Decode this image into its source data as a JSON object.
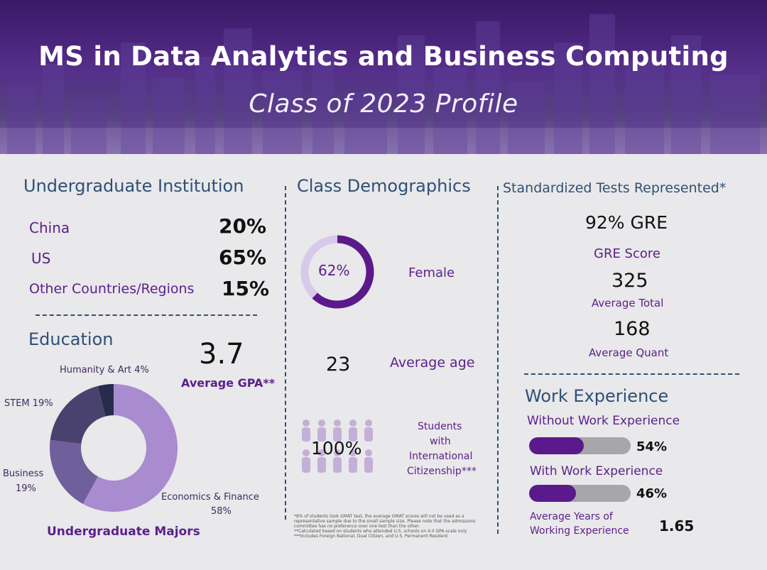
{
  "header": {
    "title": "MS in Data Analytics and Business Computing",
    "subtitle": "Class of 2023 Profile"
  },
  "institution": {
    "heading": "Undergraduate Institution",
    "rows": [
      {
        "label": "China",
        "value": "20%"
      },
      {
        "label": "US",
        "value": "65%"
      },
      {
        "label": "Other Countries/Regions",
        "value": "15%"
      }
    ]
  },
  "education": {
    "heading": "Education",
    "gpa_value": "3.7",
    "gpa_label": "Average GPA**",
    "majors_title": "Undergraduate Majors",
    "labels": {
      "humanity": "Humanity & Art 4%",
      "stem": "STEM 19%",
      "business_name": "Business",
      "business_pct": "19%",
      "econ_name": "Economics & Finance",
      "econ_pct": "58%"
    }
  },
  "chart_data": {
    "type": "pie",
    "title": "Undergraduate Majors",
    "categories": [
      "Economics & Finance",
      "Business",
      "STEM",
      "Humanity & Art"
    ],
    "values": [
      58,
      19,
      19,
      4
    ],
    "colors": [
      "#a98bd0",
      "#6f5f9a",
      "#49426f",
      "#272c4b"
    ]
  },
  "demographics": {
    "heading": "Class Demographics",
    "female_pct": 62,
    "female_pct_label": "62%",
    "female_label": "Female",
    "age_value": "23",
    "age_label": "Average age",
    "intl_value": "100%",
    "intl_label_1": "Students",
    "intl_label_2": "with",
    "intl_label_3": "International",
    "intl_label_4": "Citizenship***",
    "footnote_1": "*8% of students took GMAT test, the average GMAT scores will not be used as a representative sample due to the small sample size. Please note that the admissions committee has no preference over one test than the other.",
    "footnote_2": "**Calculated based on students who attended U.S. schools on 4.0 GPA scale only",
    "footnote_3": "***Includes Foreign National, Dual Citizen, and U.S. Permanent Resident"
  },
  "tests": {
    "heading": "Standardized Tests Represented*",
    "gre_share": "92% GRE",
    "gre_score_label": "GRE Score",
    "total_value": "325",
    "total_label": "Average Total",
    "quant_value": "168",
    "quant_label": "Average Quant"
  },
  "work": {
    "heading": "Work Experience",
    "without_label": "Without Work Experience",
    "without_pct": 54,
    "without_pct_label": "54%",
    "with_label": "With Work Experience",
    "with_pct": 46,
    "with_pct_label": "46%",
    "years_label_1": "Average Years of",
    "years_label_2": "Working Experience",
    "years_value": "1.65"
  },
  "colors": {
    "accent": "#5a1a8c",
    "heading": "#2f5077",
    "ring_track": "#d8c9ea",
    "bar_track": "#a7a6a8",
    "people": "#c4afd9"
  }
}
